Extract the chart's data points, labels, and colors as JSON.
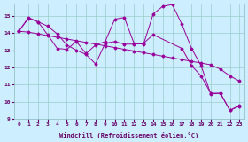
{
  "xlabel": "Windchill (Refroidissement éolien,°C)",
  "background_color": "#cceeff",
  "grid_color": "#99cccc",
  "line_color": "#990099",
  "xlim": [
    -0.5,
    23.5
  ],
  "ylim": [
    9,
    15.7
  ],
  "yticks": [
    9,
    10,
    11,
    12,
    13,
    14,
    15
  ],
  "xticks": [
    0,
    1,
    2,
    3,
    4,
    5,
    6,
    7,
    8,
    9,
    10,
    11,
    12,
    13,
    14,
    15,
    16,
    17,
    18,
    19,
    20,
    21,
    22,
    23
  ],
  "series1_x": [
    0,
    1,
    2,
    3,
    4,
    5,
    6,
    7,
    8,
    9,
    10,
    11,
    12,
    13,
    14,
    15,
    16,
    17,
    18,
    19,
    20,
    21,
    22,
    23
  ],
  "series1_y": [
    14.1,
    14.05,
    13.95,
    13.85,
    13.75,
    13.65,
    13.55,
    13.45,
    13.35,
    13.25,
    13.15,
    13.05,
    12.95,
    12.85,
    12.75,
    12.65,
    12.55,
    12.45,
    12.35,
    12.25,
    12.15,
    11.9,
    11.5,
    11.2
  ],
  "series2_x": [
    0,
    1,
    2,
    3,
    4,
    5,
    6,
    7,
    8,
    9,
    10,
    11,
    12,
    13,
    14,
    15,
    16,
    17,
    18,
    19,
    20,
    21,
    22,
    23
  ],
  "series2_y": [
    14.1,
    14.85,
    14.65,
    13.9,
    13.1,
    13.05,
    13.5,
    12.8,
    13.3,
    13.5,
    14.8,
    14.9,
    13.4,
    13.35,
    15.1,
    15.55,
    15.65,
    14.5,
    13.1,
    12.1,
    10.45,
    10.5,
    9.5,
    9.8
  ],
  "series3_x": [
    0,
    1,
    2,
    3,
    4,
    5,
    6,
    7,
    8,
    9,
    10,
    11,
    12,
    13,
    14,
    17,
    18,
    19,
    20,
    21,
    22,
    23
  ],
  "series3_y": [
    14.1,
    14.9,
    14.65,
    14.4,
    13.95,
    13.3,
    13.0,
    12.75,
    12.2,
    13.4,
    13.5,
    13.35,
    13.35,
    13.4,
    13.9,
    13.1,
    12.1,
    11.5,
    10.5,
    10.5,
    9.5,
    9.75
  ]
}
